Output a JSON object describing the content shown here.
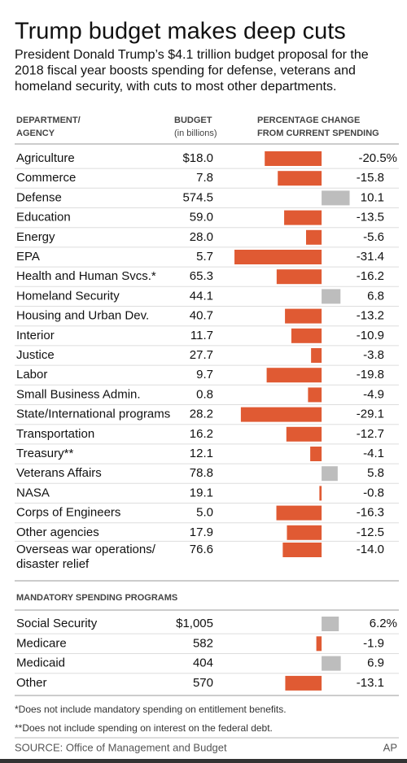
{
  "chart_data": [
    {
      "type": "bar",
      "title": "Trump budget makes deep cuts",
      "subtitle": "President Donald Trump’s $4.1 trillion budget proposal for the\n2018 fiscal year boosts spending for defense, veterans and\nhomeland security, with cuts to most other departments.",
      "column_headers": [
        "DEPARTMENT/\nAGENCY",
        "BUDGET",
        "(in billions)",
        "PERCENTAGE CHANGE\nFROM CURRENT SPENDING"
      ],
      "categories": [
        "Agriculture",
        "Commerce",
        "Defense",
        "Education",
        "Energy",
        "EPA",
        "Health and Human Svcs.*",
        "Homeland Security",
        "Housing and Urban Dev.",
        "Interior",
        "Justice",
        "Labor",
        "Small Business Admin.",
        "State/International programs",
        "Transportation",
        "Treasury**",
        "Veterans Affairs",
        "NASA",
        "Corps of Engineers",
        "Other agencies",
        "Overseas war operations/\ndisaster relief"
      ],
      "budget": [
        18.0,
        7.8,
        574.5,
        59.0,
        28.0,
        5.7,
        65.3,
        44.1,
        40.7,
        11.7,
        27.7,
        9.7,
        0.8,
        28.2,
        16.2,
        12.1,
        78.8,
        19.1,
        5.0,
        17.9,
        76.6
      ],
      "budget_labels": [
        "$18.0",
        "7.8",
        "574.5",
        "59.0",
        "28.0",
        "5.7",
        "65.3",
        "44.1",
        "40.7",
        "11.7",
        "27.7",
        "9.7",
        "0.8",
        "28.2",
        "16.2",
        "12.1",
        "78.8",
        "19.1",
        "5.0",
        "17.9",
        "76.6"
      ],
      "values": [
        -20.5,
        -15.8,
        10.1,
        -13.5,
        -5.6,
        -31.4,
        -16.2,
        6.8,
        -13.2,
        -10.9,
        -3.8,
        -19.8,
        -4.9,
        -29.1,
        -12.7,
        -4.1,
        5.8,
        -0.8,
        -16.3,
        -12.5,
        -14.0
      ],
      "value_labels": [
        "-20.5%",
        "-15.8",
        "10.1",
        "-13.5",
        "-5.6",
        "-31.4",
        "-16.2",
        "6.8",
        "-13.2",
        "-10.9",
        "-3.8",
        "-19.8",
        "-4.9",
        "-29.1",
        "-12.7",
        "-4.1",
        "5.8",
        "-0.8",
        "-16.3",
        "-12.5",
        "-14.0"
      ],
      "xlim": [
        -32,
        12
      ],
      "color": "#e05a33",
      "positive_color": "#bdbdbd"
    },
    {
      "type": "bar",
      "title": "MANDATORY SPENDING PROGRAMS",
      "categories": [
        "Social Security",
        "Medicare",
        "Medicaid",
        "Other"
      ],
      "budget": [
        1005,
        582,
        404,
        570
      ],
      "budget_labels": [
        "$1,005",
        "582",
        "404",
        "570"
      ],
      "values": [
        6.2,
        -1.9,
        6.9,
        -13.1
      ],
      "value_labels": [
        "6.2%",
        "-1.9",
        "6.9",
        "-13.1"
      ],
      "xlim": [
        -32,
        12
      ],
      "color": "#e05a33",
      "positive_color": "#bdbdbd",
      "notes": [
        "*Does not include mandatory spending on entitlement benefits.",
        "**Does not include spending on interest on the federal debt."
      ],
      "source": "SOURCE: Office of Management and Budget",
      "credit": "AP"
    }
  ]
}
